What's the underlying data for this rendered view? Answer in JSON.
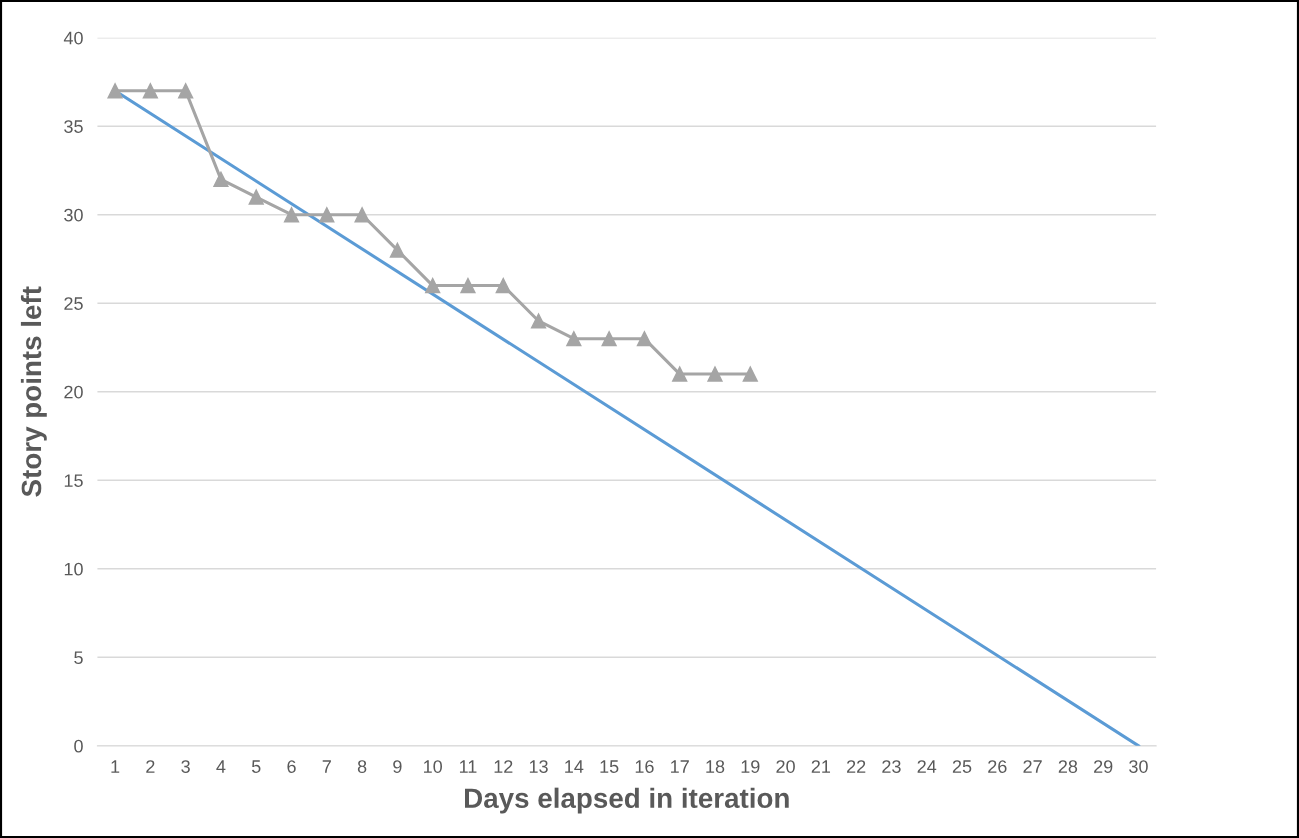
{
  "chart_data": {
    "type": "line",
    "xlabel": "Days elapsed in iteration",
    "ylabel": "Story points left",
    "xlim": [
      0.5,
      30.5
    ],
    "xticks": [
      1,
      2,
      3,
      4,
      5,
      6,
      7,
      8,
      9,
      10,
      11,
      12,
      13,
      14,
      15,
      16,
      17,
      18,
      19,
      20,
      21,
      22,
      23,
      24,
      25,
      26,
      27,
      28,
      29,
      30
    ],
    "ylim": [
      0,
      40
    ],
    "yticks": [
      0,
      5,
      10,
      15,
      20,
      25,
      30,
      35,
      40
    ],
    "grid": "y",
    "series": [
      {
        "color": "#5b9bd5",
        "x": [
          1,
          30
        ],
        "values": [
          37,
          0
        ],
        "marker": "none"
      },
      {
        "color": "#a5a5a5",
        "x": [
          1,
          2,
          3,
          4,
          5,
          6,
          7,
          8,
          9,
          10,
          11,
          12,
          13,
          14,
          15,
          16,
          17,
          18,
          19
        ],
        "values": [
          37,
          37,
          37,
          32,
          31,
          30,
          30,
          30,
          28,
          26,
          26,
          26,
          24,
          23,
          23,
          23,
          21,
          21,
          21
        ],
        "marker": "triangle"
      }
    ]
  }
}
